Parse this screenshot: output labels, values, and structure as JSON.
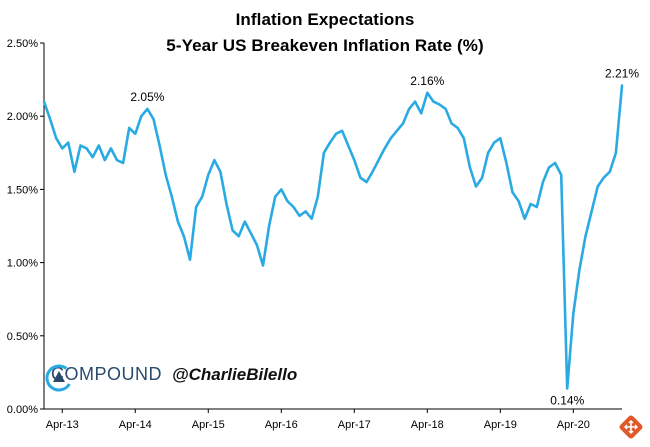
{
  "chart_data": {
    "type": "line",
    "title": "Inflation Expectations",
    "subtitle": "5-Year US Breakeven Inflation Rate (%)",
    "xlabel": "",
    "ylabel": "",
    "x_ticks": [
      "Apr-13",
      "Apr-14",
      "Apr-15",
      "Apr-16",
      "Apr-17",
      "Apr-18",
      "Apr-19",
      "Apr-20"
    ],
    "y_ticks": [
      "0.00%",
      "0.50%",
      "1.00%",
      "1.50%",
      "2.00%",
      "2.50%"
    ],
    "ylim": [
      0,
      2.5
    ],
    "x_range": [
      "2013-01",
      "2020-12"
    ],
    "grid": false,
    "line_color": "#2aaae2",
    "series": [
      {
        "x": [
          "2013-01",
          "2013-02",
          "2013-03",
          "2013-04",
          "2013-05",
          "2013-06",
          "2013-07",
          "2013-08",
          "2013-09",
          "2013-10",
          "2013-11",
          "2013-12",
          "2014-01",
          "2014-02",
          "2014-03",
          "2014-04",
          "2014-05",
          "2014-06",
          "2014-07",
          "2014-08",
          "2014-09",
          "2014-10",
          "2014-11",
          "2014-12",
          "2015-01",
          "2015-02",
          "2015-03",
          "2015-04",
          "2015-05",
          "2015-06",
          "2015-07",
          "2015-08",
          "2015-09",
          "2015-10",
          "2015-11",
          "2015-12",
          "2016-01",
          "2016-02",
          "2016-03",
          "2016-04",
          "2016-05",
          "2016-06",
          "2016-07",
          "2016-08",
          "2016-09",
          "2016-10",
          "2016-11",
          "2016-12",
          "2017-01",
          "2017-02",
          "2017-03",
          "2017-04",
          "2017-05",
          "2017-06",
          "2017-07",
          "2017-08",
          "2017-09",
          "2017-10",
          "2017-11",
          "2017-12",
          "2018-01",
          "2018-02",
          "2018-03",
          "2018-04",
          "2018-05",
          "2018-06",
          "2018-07",
          "2018-08",
          "2018-09",
          "2018-10",
          "2018-11",
          "2018-12",
          "2019-01",
          "2019-02",
          "2019-03",
          "2019-04",
          "2019-05",
          "2019-06",
          "2019-07",
          "2019-08",
          "2019-09",
          "2019-10",
          "2019-11",
          "2019-12",
          "2020-01",
          "2020-02",
          "2020-03",
          "2020-04",
          "2020-05",
          "2020-06",
          "2020-07",
          "2020-08",
          "2020-09",
          "2020-10",
          "2020-11",
          "2020-12"
        ],
        "values": [
          2.1,
          1.98,
          1.85,
          1.78,
          1.82,
          1.62,
          1.8,
          1.78,
          1.72,
          1.8,
          1.7,
          1.78,
          1.7,
          1.68,
          1.92,
          1.88,
          2.0,
          2.05,
          1.98,
          1.8,
          1.6,
          1.45,
          1.28,
          1.18,
          1.02,
          1.38,
          1.45,
          1.6,
          1.7,
          1.62,
          1.4,
          1.22,
          1.18,
          1.28,
          1.2,
          1.12,
          0.98,
          1.25,
          1.45,
          1.5,
          1.42,
          1.38,
          1.32,
          1.35,
          1.3,
          1.45,
          1.75,
          1.82,
          1.88,
          1.9,
          1.8,
          1.7,
          1.58,
          1.55,
          1.62,
          1.7,
          1.78,
          1.85,
          1.9,
          1.95,
          2.05,
          2.1,
          2.02,
          2.16,
          2.1,
          2.08,
          2.05,
          1.95,
          1.92,
          1.85,
          1.65,
          1.52,
          1.58,
          1.75,
          1.82,
          1.85,
          1.68,
          1.48,
          1.42,
          1.3,
          1.4,
          1.38,
          1.55,
          1.65,
          1.68,
          1.6,
          0.14,
          0.65,
          0.95,
          1.18,
          1.35,
          1.52,
          1.58,
          1.62,
          1.75,
          2.21
        ]
      }
    ],
    "annotations": [
      {
        "x": "2014-06",
        "value": 2.05,
        "label": "2.05%"
      },
      {
        "x": "2018-04",
        "value": 2.16,
        "label": "2.16%"
      },
      {
        "x": "2020-03",
        "value": 0.14,
        "label": "0.14%"
      },
      {
        "x": "2020-12",
        "value": 2.21,
        "label": "2.21%"
      }
    ]
  },
  "branding": {
    "company": "COMPOUND",
    "handle": "@CharlieBilello"
  },
  "icons": {
    "logo": "compound-logo-icon",
    "corner": "diamond-arrows-icon"
  }
}
